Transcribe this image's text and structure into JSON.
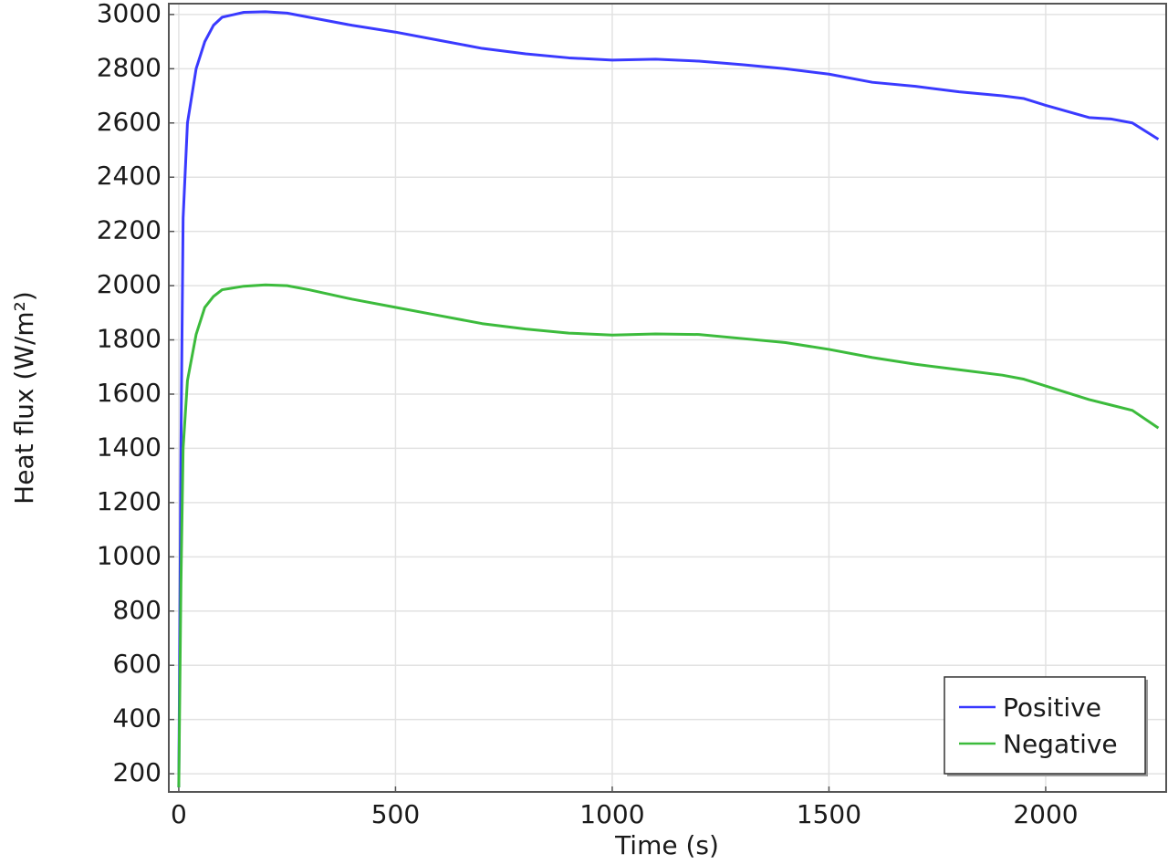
{
  "chart_data": {
    "type": "line",
    "x_label": "Time (s)",
    "y_label": "Heat flux  (W/m²)",
    "x": [
      0,
      5,
      10,
      20,
      40,
      60,
      80,
      100,
      150,
      200,
      250,
      300,
      400,
      500,
      600,
      700,
      800,
      900,
      1000,
      1100,
      1200,
      1300,
      1400,
      1500,
      1600,
      1700,
      1800,
      1900,
      1950,
      2000,
      2100,
      2150,
      2200,
      2260
    ],
    "series": [
      {
        "name": "Positive",
        "color": "#3a3aff",
        "values": [
          150,
          1400,
          2250,
          2600,
          2800,
          2900,
          2960,
          2990,
          3008,
          3010,
          3005,
          2990,
          2960,
          2935,
          2905,
          2875,
          2855,
          2840,
          2832,
          2835,
          2828,
          2815,
          2800,
          2780,
          2750,
          2735,
          2715,
          2700,
          2690,
          2665,
          2620,
          2615,
          2600,
          2540
        ]
      },
      {
        "name": "Negative",
        "color": "#3cbb3c",
        "values": [
          150,
          900,
          1400,
          1650,
          1820,
          1920,
          1960,
          1985,
          1998,
          2003,
          2000,
          1985,
          1950,
          1920,
          1890,
          1860,
          1840,
          1825,
          1818,
          1822,
          1820,
          1805,
          1790,
          1765,
          1735,
          1710,
          1690,
          1670,
          1655,
          1630,
          1580,
          1560,
          1540,
          1475
        ]
      }
    ],
    "xlim": [
      -23,
      2278
    ],
    "xticks": [
      0,
      500,
      1000,
      1500,
      2000
    ],
    "ylim": [
      133,
      3040
    ],
    "yticks": [
      200,
      400,
      600,
      800,
      1000,
      1200,
      1400,
      1600,
      1800,
      2000,
      2200,
      2400,
      2600,
      2800,
      3000
    ],
    "grid": true,
    "legend": "lower right"
  }
}
